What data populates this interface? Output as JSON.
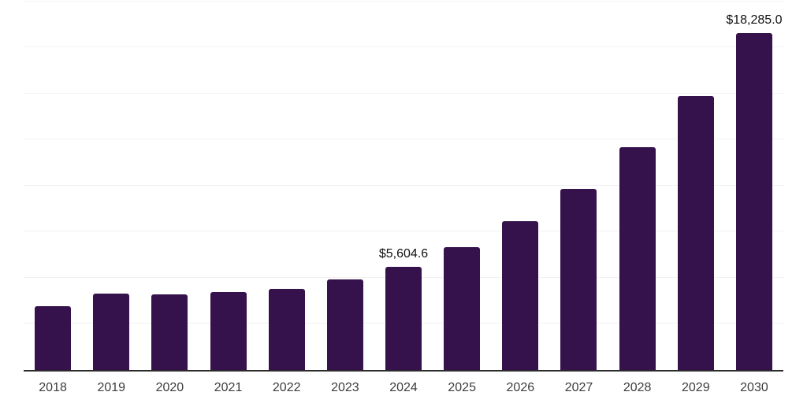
{
  "chart_data": {
    "type": "bar",
    "title": "",
    "xlabel": "",
    "ylabel": "",
    "legend": "none",
    "grid": "horizontal",
    "ylim": [
      0,
      20000
    ],
    "gridline_step": 2500,
    "categories": [
      "2018",
      "2019",
      "2020",
      "2021",
      "2022",
      "2023",
      "2024",
      "2025",
      "2026",
      "2027",
      "2028",
      "2029",
      "2030"
    ],
    "values": [
      3480,
      4140,
      4100,
      4215,
      4400,
      4900,
      5604.6,
      6680,
      8060,
      9840,
      12080,
      14860,
      18285
    ],
    "annotations": [
      {
        "category": "2024",
        "text": "$5,604.6"
      },
      {
        "category": "2030",
        "text": "$18,285.0"
      }
    ],
    "colors": {
      "bar": "#36124D",
      "axis": "#2B2B2B",
      "gridline": "#F1F1F1",
      "tick_label": "#3C3C3C",
      "value_label": "#111111",
      "background": "#FFFFFF"
    }
  }
}
